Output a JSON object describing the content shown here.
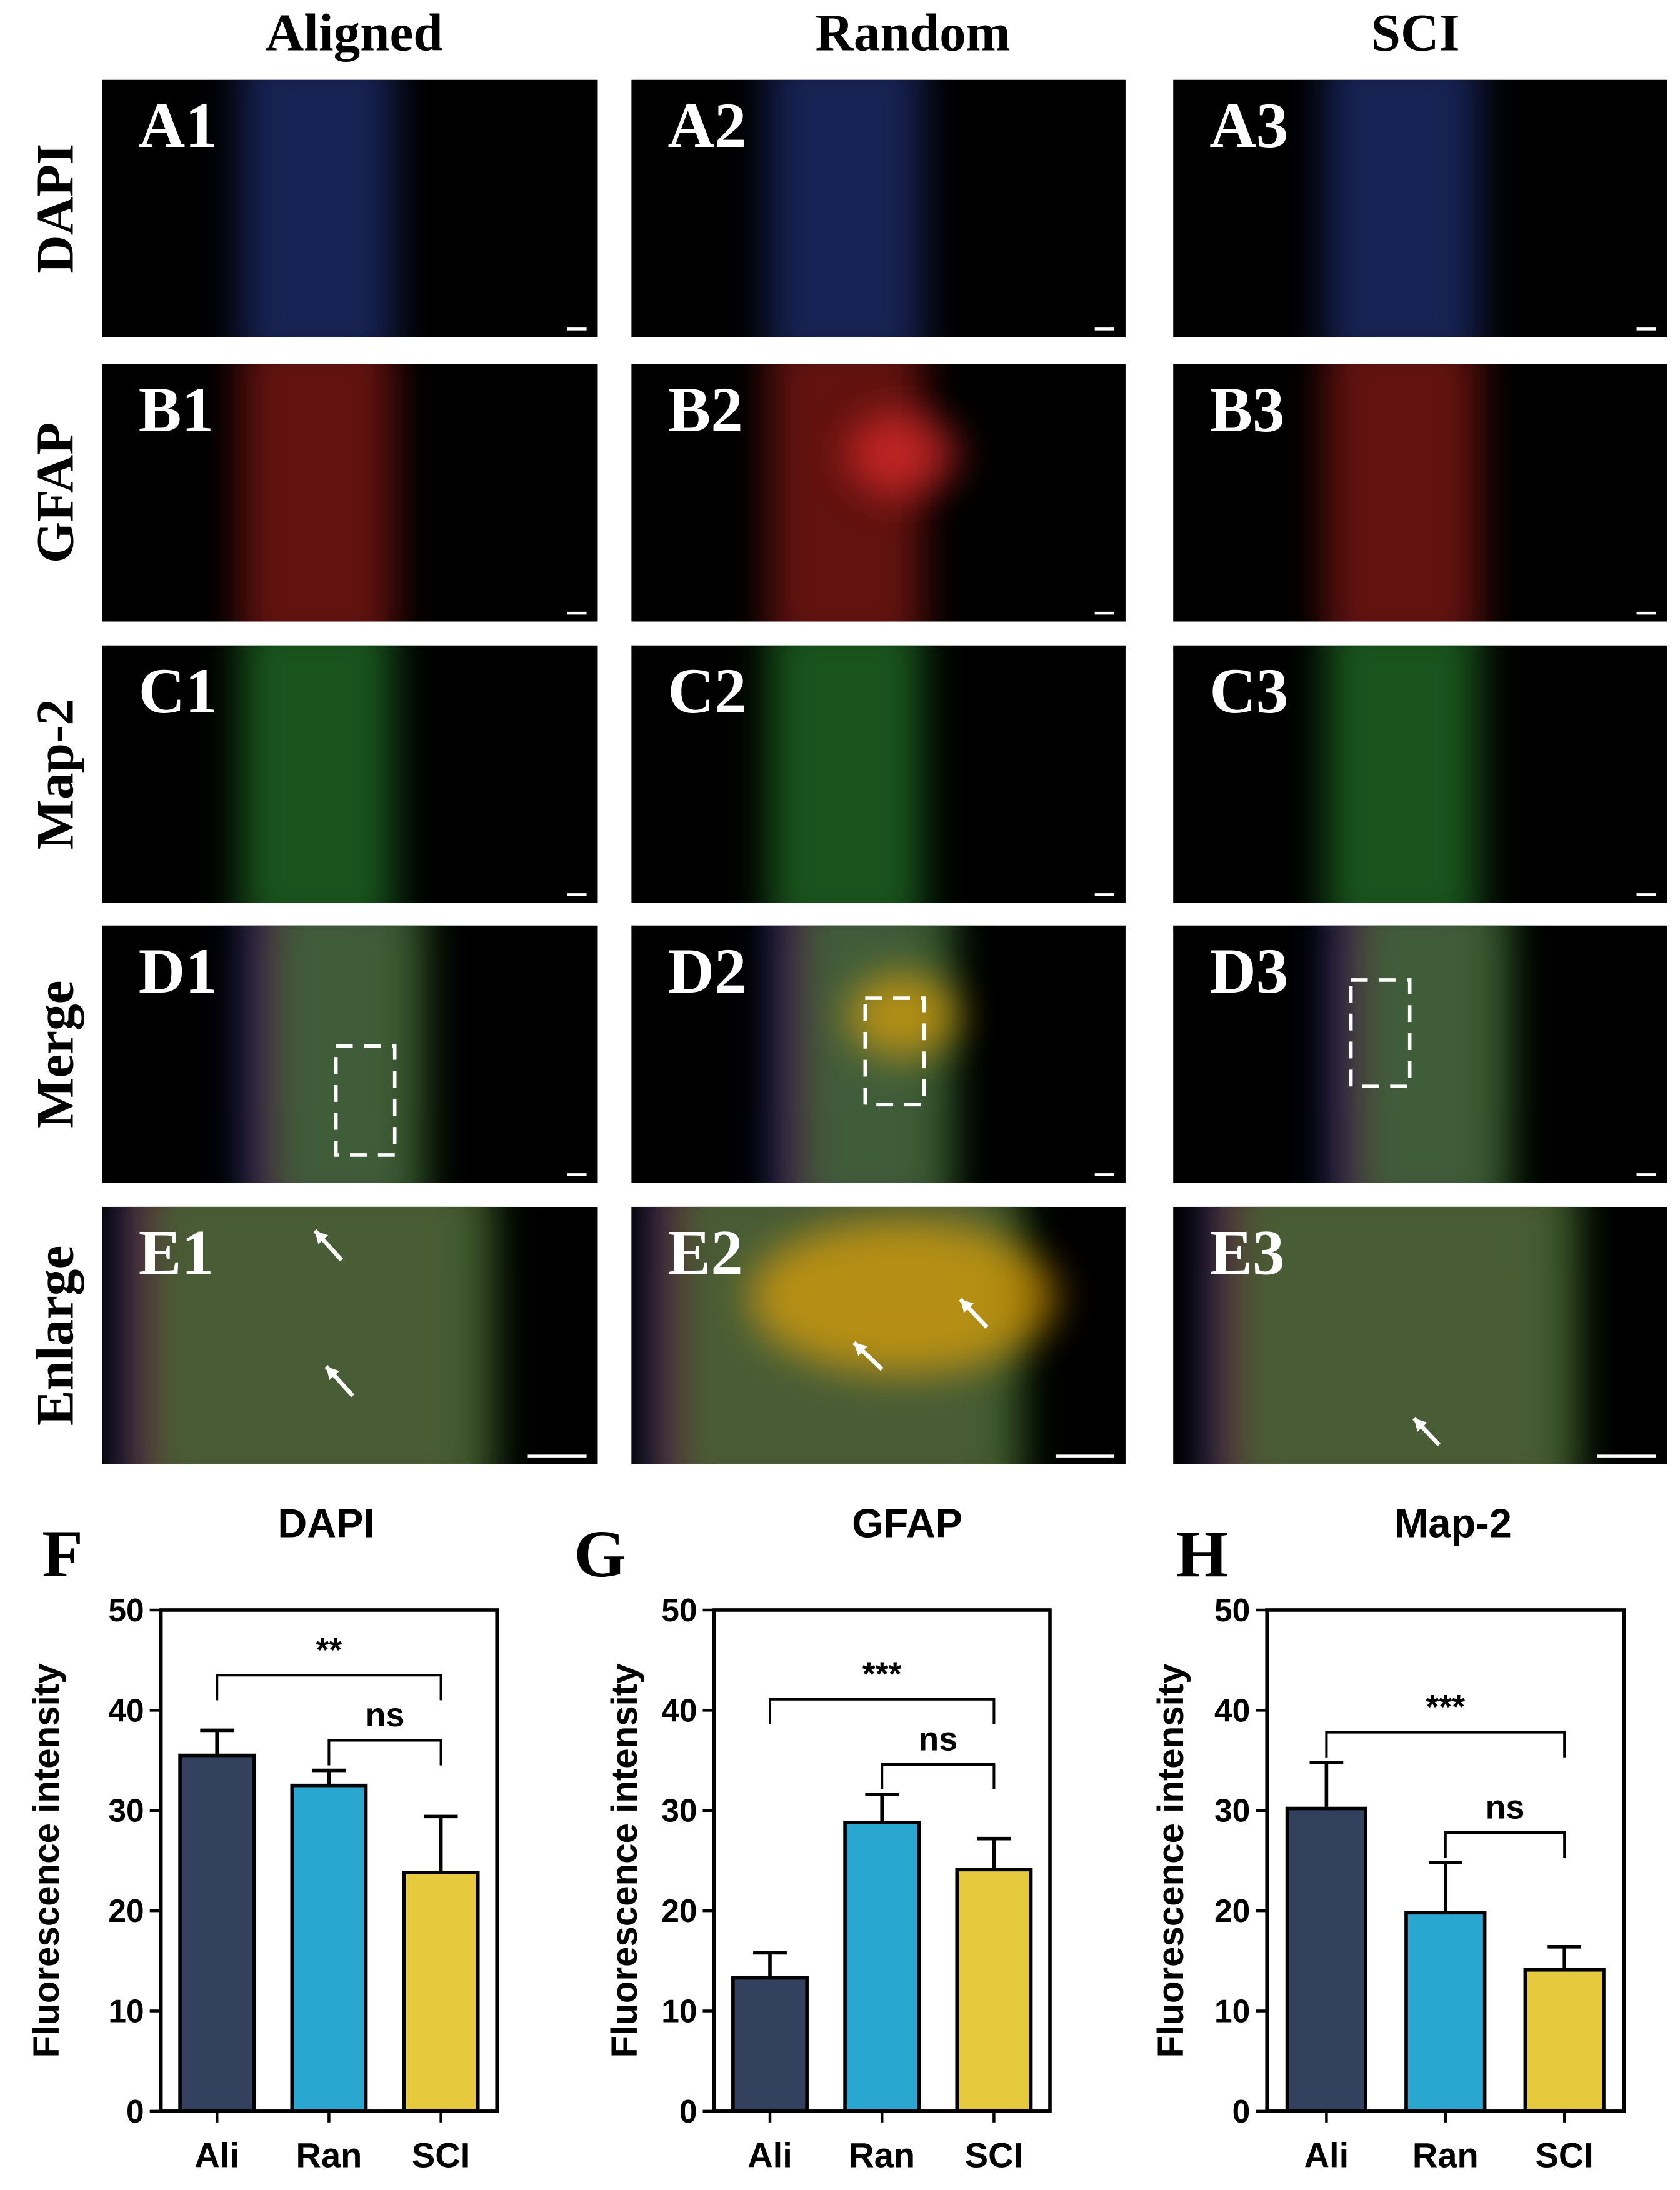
{
  "columns": [
    "Aligned",
    "Random",
    "SCI"
  ],
  "rows": [
    "DAPI",
    "GFAP",
    "Map-2",
    "Merge",
    "Enlarge"
  ],
  "panels": [
    [
      "A1",
      "A2",
      "A3"
    ],
    [
      "B1",
      "B2",
      "B3"
    ],
    [
      "C1",
      "C2",
      "C3"
    ],
    [
      "D1",
      "D2",
      "D3"
    ],
    [
      "E1",
      "E2",
      "E3"
    ]
  ],
  "chart_data": [
    {
      "type": "bar",
      "panel": "F",
      "title": "DAPI",
      "ylabel": "Fluorescence intensity",
      "categories": [
        "Ali",
        "Ran",
        "SCI"
      ],
      "values": [
        35.5,
        32.5,
        23.8
      ],
      "errors": [
        2.5,
        1.5,
        5.6
      ],
      "colors": [
        "#33415f",
        "#2aa7d0",
        "#e6c93d"
      ],
      "ylim": [
        0,
        50
      ],
      "yticks": [
        0,
        10,
        20,
        30,
        40,
        50
      ],
      "annotations": [
        {
          "text": "**",
          "between": [
            "Ali",
            "SCI"
          ]
        },
        {
          "text": "ns",
          "between": [
            "Ran",
            "SCI"
          ]
        }
      ]
    },
    {
      "type": "bar",
      "panel": "G",
      "title": "GFAP",
      "ylabel": "Fluorescence intensity",
      "categories": [
        "Ali",
        "Ran",
        "SCI"
      ],
      "values": [
        13.3,
        28.8,
        24.1
      ],
      "errors": [
        2.5,
        2.8,
        3.1
      ],
      "colors": [
        "#33415f",
        "#2aa7d0",
        "#e6c93d"
      ],
      "ylim": [
        0,
        50
      ],
      "yticks": [
        0,
        10,
        20,
        30,
        40,
        50
      ],
      "annotations": [
        {
          "text": "***",
          "between": [
            "Ali",
            "SCI"
          ]
        },
        {
          "text": "ns",
          "between": [
            "Ran",
            "SCI"
          ]
        }
      ]
    },
    {
      "type": "bar",
      "panel": "H",
      "title": "Map-2",
      "ylabel": "Fluorescence intensity",
      "categories": [
        "Ali",
        "Ran",
        "SCI"
      ],
      "values": [
        30.2,
        19.8,
        14.1
      ],
      "errors": [
        4.6,
        5.0,
        2.3
      ],
      "colors": [
        "#33415f",
        "#2aa7d0",
        "#e6c93d"
      ],
      "ylim": [
        0,
        50
      ],
      "yticks": [
        0,
        10,
        20,
        30,
        40,
        50
      ],
      "annotations": [
        {
          "text": "***",
          "between": [
            "Ali",
            "SCI"
          ]
        },
        {
          "text": "ns",
          "between": [
            "Ran",
            "SCI"
          ]
        }
      ]
    }
  ]
}
